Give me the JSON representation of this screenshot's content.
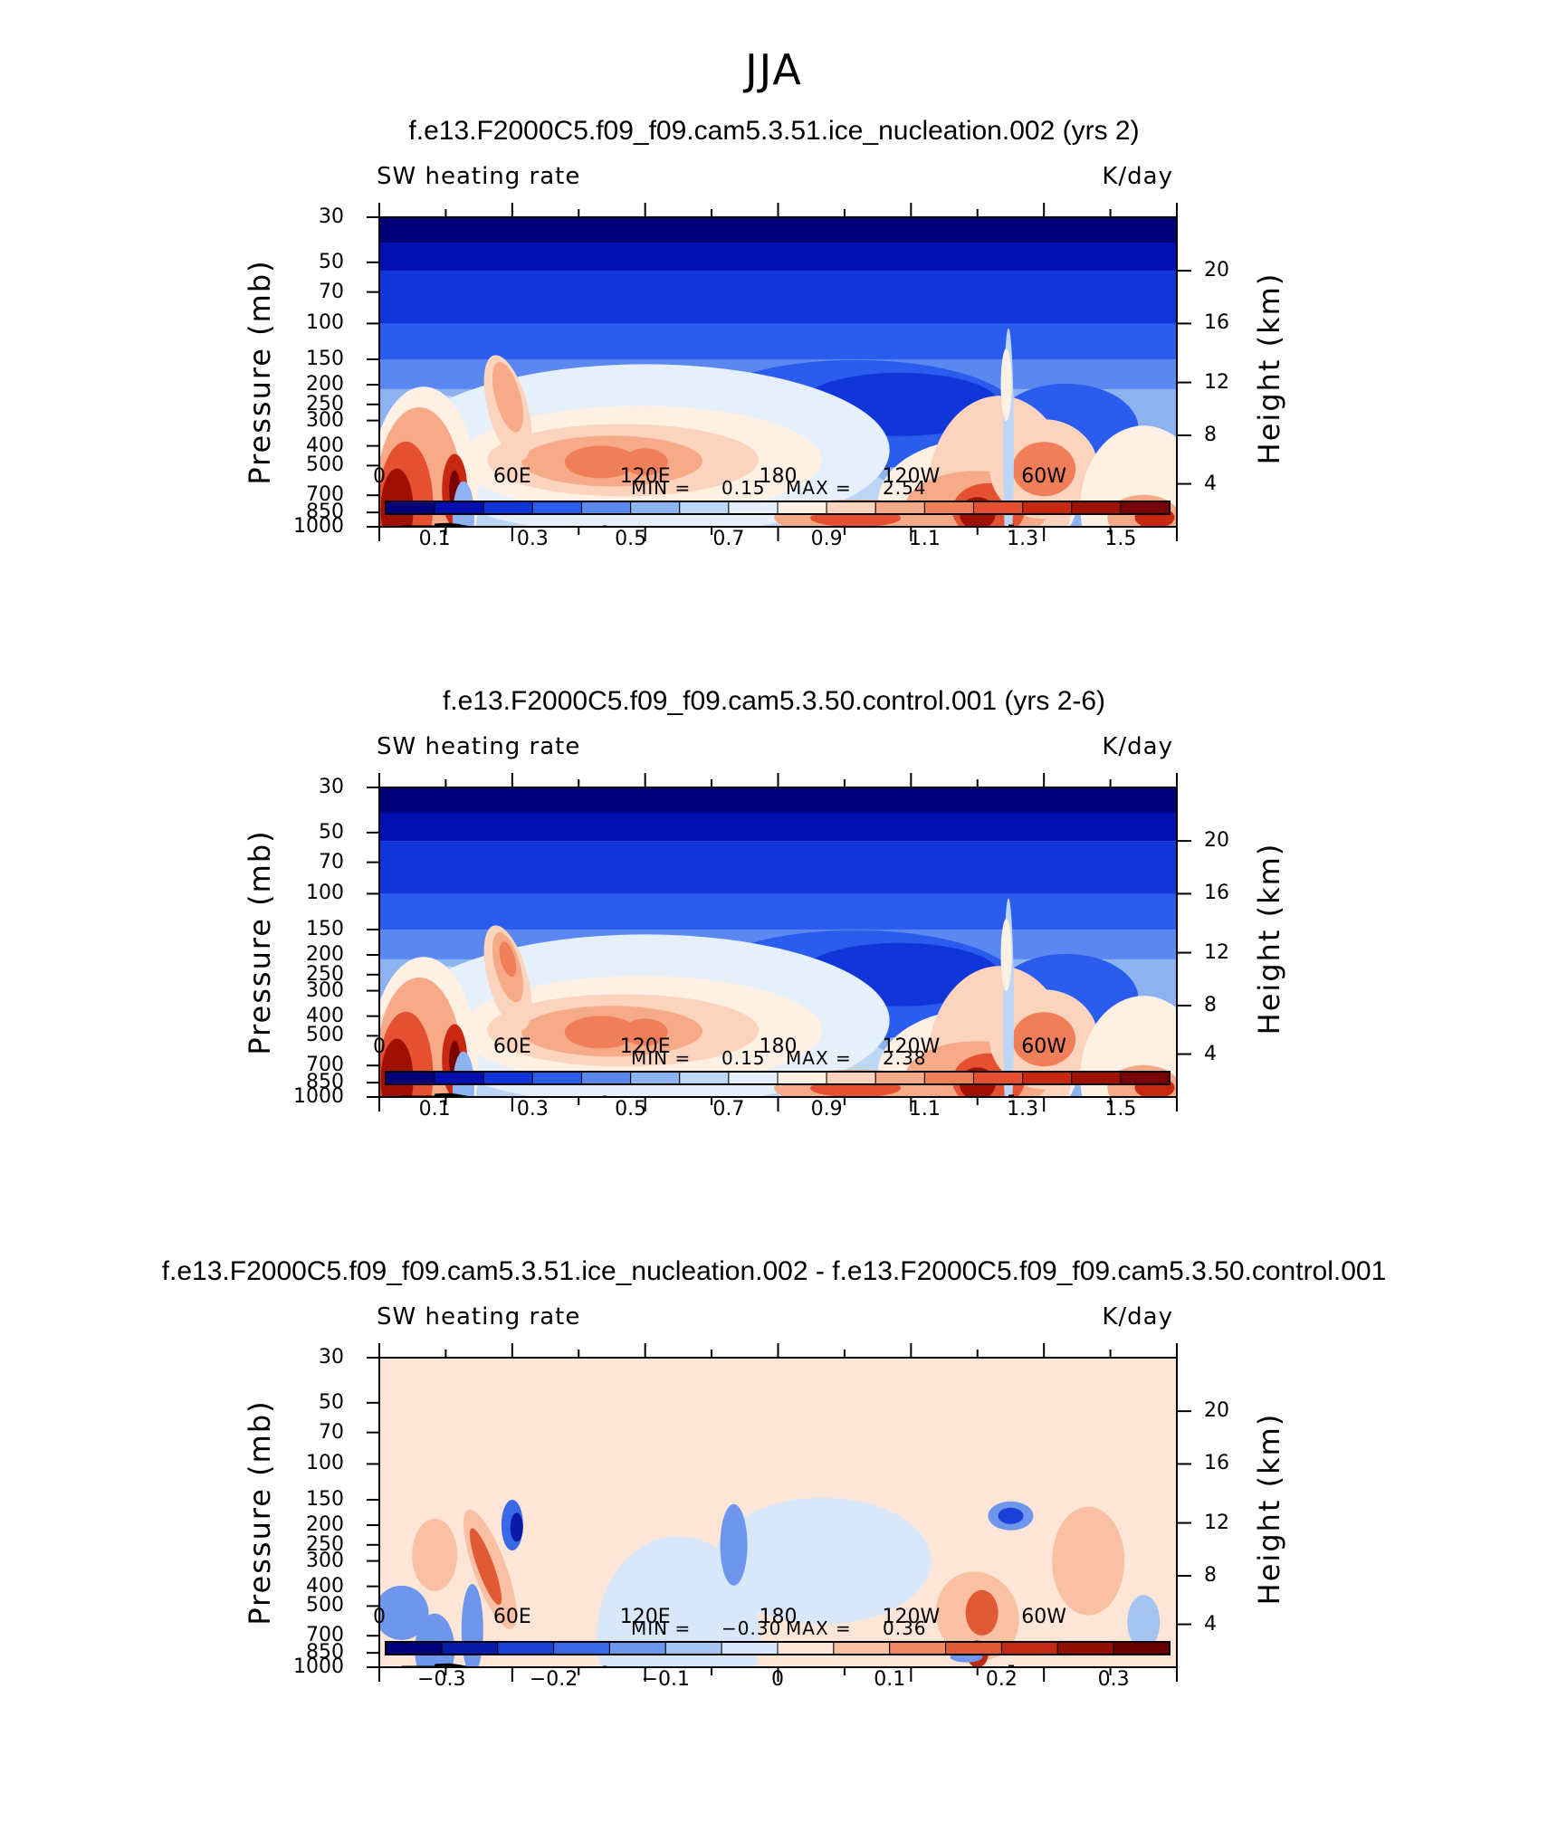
{
  "figure": {
    "title": "JJA"
  },
  "panels": [
    {
      "case_title": "f.e13.F2000C5.f09_f09.cam5.3.51.ice_nucleation.002 (yrs 2)",
      "left_string": "SW heating rate",
      "right_string": "K/day",
      "min_label": "MIN =",
      "min_value": "0.15",
      "max_label": "MAX =",
      "max_value": "2.54",
      "colorbar_labels": [
        "0.1",
        "0.3",
        "0.5",
        "0.7",
        "0.9",
        "1.1",
        "1.3",
        "1.5"
      ]
    },
    {
      "case_title": "f.e13.F2000C5.f09_f09.cam5.3.50.control.001 (yrs 2-6)",
      "left_string": "SW heating rate",
      "right_string": "K/day",
      "min_label": "MIN =",
      "min_value": "0.15",
      "max_label": "MAX =",
      "max_value": "2.38",
      "colorbar_labels": [
        "0.1",
        "0.3",
        "0.5",
        "0.7",
        "0.9",
        "1.1",
        "1.3",
        "1.5"
      ]
    },
    {
      "case_title": "f.e13.F2000C5.f09_f09.cam5.3.51.ice_nucleation.002 - f.e13.F2000C5.f09_f09.cam5.3.50.control.001",
      "left_string": "SW heating rate",
      "right_string": "K/day",
      "min_label": "MIN =",
      "min_value": "−0.30",
      "max_label": "MAX =",
      "max_value": "0.36",
      "colorbar_labels": [
        "−0.3",
        "−0.2",
        "−0.1",
        "0",
        "0.1",
        "0.2",
        "0.3"
      ]
    }
  ],
  "chart_data": [
    {
      "type": "heatmap",
      "title": "f.e13.F2000C5.f09_f09.cam5.3.51.ice_nucleation.002 (yrs 2)",
      "xlabel": "",
      "ylabel": "Pressure (mb)",
      "y2label": "Height (km)",
      "x_ticks": [
        "0",
        "60E",
        "120E",
        "180",
        "120W",
        "60W"
      ],
      "x_range": [
        0,
        360
      ],
      "y_ticks": [
        "30",
        "50",
        "70",
        "100",
        "150",
        "200",
        "250",
        "300",
        "400",
        "500",
        "700",
        "850",
        "1000"
      ],
      "y_range": [
        30,
        1000
      ],
      "y_scale": "log",
      "y2_ticks": [
        "20",
        "16",
        "12",
        "8",
        "4"
      ],
      "color_levels": [
        "0.1",
        "0.3",
        "0.5",
        "0.7",
        "0.9",
        "1.1",
        "1.3",
        "1.5"
      ],
      "min": 0.15,
      "max": 2.54,
      "units": "K/day"
    },
    {
      "type": "heatmap",
      "title": "f.e13.F2000C5.f09_f09.cam5.3.50.control.001 (yrs 2-6)",
      "xlabel": "",
      "ylabel": "Pressure (mb)",
      "y2label": "Height (km)",
      "x_ticks": [
        "0",
        "60E",
        "120E",
        "180",
        "120W",
        "60W"
      ],
      "x_range": [
        0,
        360
      ],
      "y_ticks": [
        "30",
        "50",
        "70",
        "100",
        "150",
        "200",
        "250",
        "300",
        "400",
        "500",
        "700",
        "850",
        "1000"
      ],
      "y_range": [
        30,
        1000
      ],
      "y_scale": "log",
      "y2_ticks": [
        "20",
        "16",
        "12",
        "8",
        "4"
      ],
      "color_levels": [
        "0.1",
        "0.3",
        "0.5",
        "0.7",
        "0.9",
        "1.1",
        "1.3",
        "1.5"
      ],
      "min": 0.15,
      "max": 2.38,
      "units": "K/day"
    },
    {
      "type": "heatmap",
      "title": "f.e13.F2000C5.f09_f09.cam5.3.51.ice_nucleation.002 - f.e13.F2000C5.f09_f09.cam5.3.50.control.001",
      "xlabel": "",
      "ylabel": "Pressure (mb)",
      "y2label": "Height (km)",
      "x_ticks": [
        "0",
        "60E",
        "120E",
        "180",
        "120W",
        "60W"
      ],
      "x_range": [
        0,
        360
      ],
      "y_ticks": [
        "30",
        "50",
        "70",
        "100",
        "150",
        "200",
        "250",
        "300",
        "400",
        "500",
        "700",
        "850",
        "1000"
      ],
      "y_range": [
        30,
        1000
      ],
      "y_scale": "log",
      "y2_ticks": [
        "20",
        "16",
        "12",
        "8",
        "4"
      ],
      "color_levels": [
        "−0.3",
        "−0.2",
        "−0.1",
        "0",
        "0.1",
        "0.2",
        "0.3"
      ],
      "min": -0.3,
      "max": 0.36,
      "units": "K/day"
    }
  ],
  "axis_labels": {
    "pressure": "Pressure (mb)",
    "height": "Height (km)"
  },
  "colors": {
    "seq": [
      "#00007a",
      "#0010b0",
      "#1035d8",
      "#2a5cee",
      "#5a88f0",
      "#8cb2f0",
      "#bcd6f6",
      "#e6f0fb",
      "#fff0e4",
      "#fcd3bd",
      "#f7aa88",
      "#f07e58",
      "#e45030",
      "#c82810",
      "#a01000",
      "#780000"
    ],
    "diff": [
      "#00007a",
      "#0a1aa8",
      "#1a40d8",
      "#3a6ae8",
      "#6e96ec",
      "#a6c4f2",
      "#d8e8fa",
      "#fde6d8",
      "#fac0a4",
      "#f08a64",
      "#e05a36",
      "#c02a14",
      "#901000",
      "#680000"
    ]
  }
}
